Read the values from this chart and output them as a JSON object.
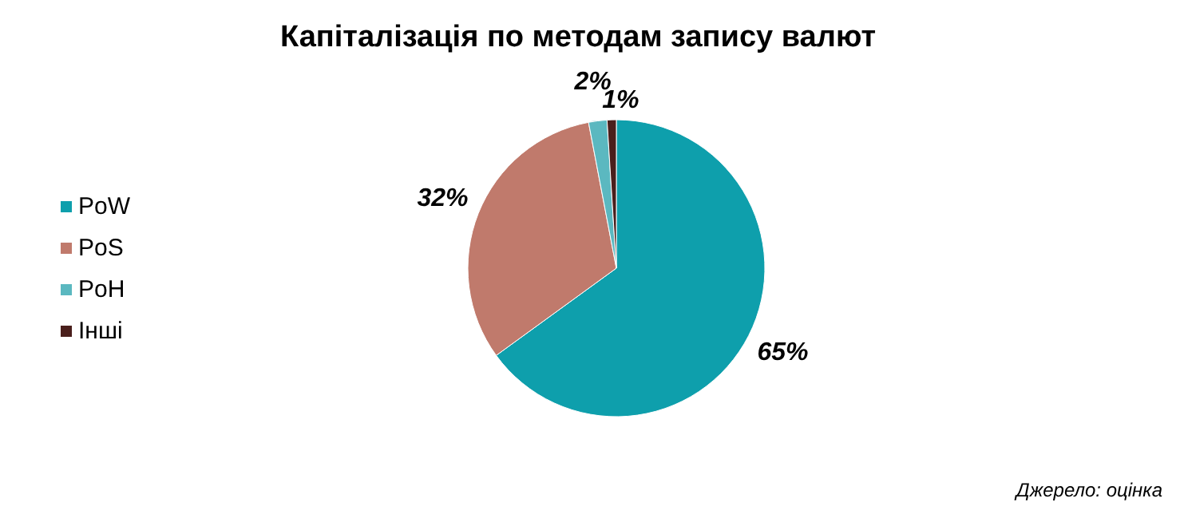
{
  "chart_data": {
    "type": "pie",
    "title": "Капіталізація по методам запису валют",
    "categories": [
      "PoW",
      "PoS",
      "PoH",
      "Інші"
    ],
    "values": [
      65,
      32,
      2,
      1
    ],
    "colors": [
      "#0e9fac",
      "#c07a6c",
      "#5bb8c0",
      "#4a1f1c"
    ],
    "value_labels": [
      "65%",
      "32%",
      "2%",
      "1%"
    ],
    "legend": "left",
    "annotations": [
      "Джерело: оцінка"
    ]
  }
}
